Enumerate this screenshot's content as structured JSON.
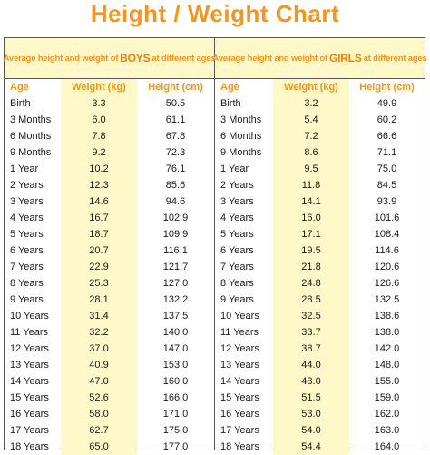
{
  "title": "Height / Weight Chart",
  "boys": {
    "header_prefix": "Average height and weight of",
    "header_highlight": "BOYS",
    "header_suffix": "at different ages",
    "columns": [
      "Age",
      "Weight (kg)",
      "Height (cm)"
    ],
    "rows": [
      [
        "Birth",
        "3.3",
        "50.5"
      ],
      [
        "3 Months",
        "6.0",
        "61.1"
      ],
      [
        "6 Months",
        "7.8",
        "67.8"
      ],
      [
        "9 Months",
        "9.2",
        "72.3"
      ],
      [
        "1 Year",
        "10.2",
        "76.1"
      ],
      [
        "2 Years",
        "12.3",
        "85.6"
      ],
      [
        "3 Years",
        "14.6",
        "94.6"
      ],
      [
        "4 Years",
        "16.7",
        "102.9"
      ],
      [
        "5 Years",
        "18.7",
        "109.9"
      ],
      [
        "6 Years",
        "20.7",
        "116.1"
      ],
      [
        "7 Years",
        "22.9",
        "121.7"
      ],
      [
        "8 Years",
        "25.3",
        "127.0"
      ],
      [
        "9 Years",
        "28.1",
        "132.2"
      ],
      [
        "10 Years",
        "31.4",
        "137.5"
      ],
      [
        "11 Years",
        "32.2",
        "140.0"
      ],
      [
        "12 Years",
        "37.0",
        "147.0"
      ],
      [
        "13 Years",
        "40.9",
        "153.0"
      ],
      [
        "14 Years",
        "47.0",
        "160.0"
      ],
      [
        "15 Years",
        "52.6",
        "166.0"
      ],
      [
        "16 Years",
        "58.0",
        "171.0"
      ],
      [
        "17 Years",
        "62.7",
        "175.0"
      ],
      [
        "18 Years",
        "65.0",
        "177.0"
      ]
    ]
  },
  "girls": {
    "header_prefix": "Average height and weight of",
    "header_highlight": "GIRLS",
    "header_suffix": "at different ages",
    "columns": [
      "Age",
      "Weight (kg)",
      "Height (cm)"
    ],
    "rows": [
      [
        "Birth",
        "3.2",
        "49.9"
      ],
      [
        "3 Months",
        "5.4",
        "60.2"
      ],
      [
        "6 Months",
        "7.2",
        "66.6"
      ],
      [
        "9 Months",
        "8.6",
        "71.1"
      ],
      [
        "1 Year",
        "9.5",
        "75.0"
      ],
      [
        "2 Years",
        "11.8",
        "84.5"
      ],
      [
        "3 Years",
        "14.1",
        "93.9"
      ],
      [
        "4 Years",
        "16.0",
        "101.6"
      ],
      [
        "5 Years",
        "17.1",
        "108.4"
      ],
      [
        "6 Years",
        "19.5",
        "114.6"
      ],
      [
        "7 Years",
        "21.8",
        "120.6"
      ],
      [
        "8 Years",
        "24.8",
        "126.6"
      ],
      [
        "9 Years",
        "28.5",
        "132.5"
      ],
      [
        "10 Years",
        "32.5",
        "138.6"
      ],
      [
        "11 Years",
        "33.7",
        "138.0"
      ],
      [
        "12 Years",
        "38.7",
        "142.0"
      ],
      [
        "13 Years",
        "44.0",
        "148.0"
      ],
      [
        "14 Years",
        "48.0",
        "155.0"
      ],
      [
        "15 Years",
        "51.5",
        "159.0"
      ],
      [
        "16 Years",
        "53.0",
        "162.0"
      ],
      [
        "17 Years",
        "54.0",
        "163.0"
      ],
      [
        "18 Years",
        "54.4",
        "164.0"
      ]
    ]
  },
  "colors": {
    "accent": "#f7941d",
    "cell_fill": "#fff8c8",
    "border": "#555555"
  }
}
